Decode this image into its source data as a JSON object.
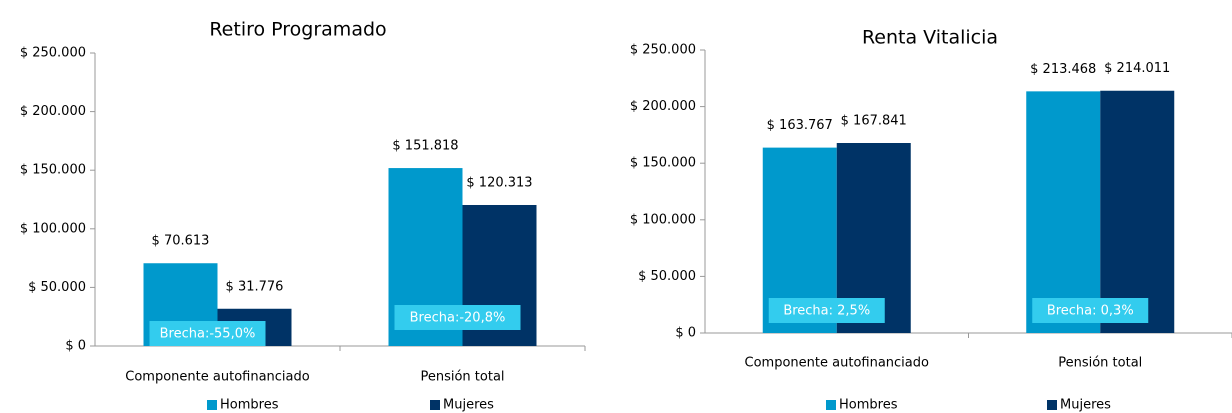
{
  "chart_data": [
    {
      "type": "bar",
      "title": "Retiro Programado",
      "categories": [
        "Componente autofinanciado",
        "Pensión total"
      ],
      "series": [
        {
          "name": "Hombres",
          "color": "#0099cc",
          "values": [
            70613,
            151818
          ],
          "value_labels": [
            "$ 70.613",
            "$ 151.818"
          ]
        },
        {
          "name": "Mujeres",
          "color": "#003366",
          "values": [
            31776,
            120313
          ],
          "value_labels": [
            "$ 31.776",
            "$ 120.313"
          ]
        }
      ],
      "ylim": [
        0,
        250000
      ],
      "yticks": [
        {
          "value": 0,
          "label": "$ 0"
        },
        {
          "value": 50000,
          "label": "$ 50.000"
        },
        {
          "value": 100000,
          "label": "$ 100.000"
        },
        {
          "value": 150000,
          "label": "$ 150.000"
        },
        {
          "value": 200000,
          "label": "$ 200.000"
        },
        {
          "value": 250000,
          "label": "$ 250.000"
        }
      ],
      "annotations": [
        "Brecha:-55,0%",
        "Brecha:-20,8%"
      ],
      "grid": false,
      "legend": "bottom"
    },
    {
      "type": "bar",
      "title": "Renta Vitalicia",
      "categories": [
        "Componente autofinanciado",
        "Pensión total"
      ],
      "series": [
        {
          "name": "Hombres",
          "color": "#0099cc",
          "values": [
            163767,
            213468
          ],
          "value_labels": [
            "$ 163.767",
            "$ 213.468"
          ]
        },
        {
          "name": "Mujeres",
          "color": "#003366",
          "values": [
            167841,
            214011
          ],
          "value_labels": [
            "$ 167.841",
            "$ 214.011"
          ]
        }
      ],
      "ylim": [
        0,
        250000
      ],
      "yticks": [
        {
          "value": 0,
          "label": "$ 0"
        },
        {
          "value": 50000,
          "label": "$ 50.000"
        },
        {
          "value": 100000,
          "label": "$ 100.000"
        },
        {
          "value": 150000,
          "label": "$ 150.000"
        },
        {
          "value": 200000,
          "label": "$ 200.000"
        },
        {
          "value": 250000,
          "label": "$ 250.000"
        }
      ],
      "annotations": [
        "Brecha: 2,5%",
        "Brecha: 0,3%"
      ],
      "grid": false,
      "legend": "bottom"
    }
  ]
}
